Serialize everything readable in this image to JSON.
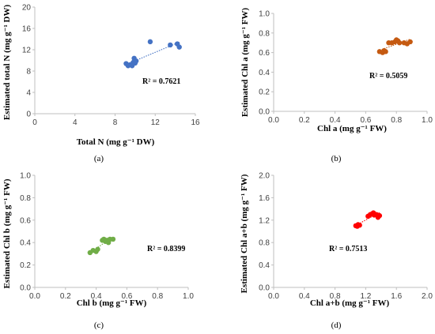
{
  "chart_data": [
    {
      "type": "scatter",
      "panel_label": "(a)",
      "xlabel": "Total N (mg g⁻¹ DW)",
      "ylabel": "Estimated total N (mg g⁻¹ DW)",
      "xlim": [
        0,
        16
      ],
      "ylim": [
        0,
        20
      ],
      "xticks": [
        "0",
        "4",
        "8",
        "12",
        "16"
      ],
      "yticks": [
        "0",
        "4",
        "8",
        "12",
        "16",
        "20"
      ],
      "r2_label": "R² = 0.7621",
      "color": "#4472c4",
      "trendline": true,
      "x": [
        9.1,
        9.3,
        9.5,
        9.7,
        9.8,
        9.9,
        10.0,
        10.1,
        9.9,
        11.5,
        13.5,
        14.2,
        14.4
      ],
      "y": [
        9.4,
        9.0,
        9.2,
        9.0,
        9.6,
        10.4,
        9.5,
        9.9,
        9.8,
        13.5,
        12.9,
        13.1,
        12.5
      ]
    },
    {
      "type": "scatter",
      "panel_label": "(b)",
      "xlabel": "Chl a (mg g⁻¹ FW)",
      "ylabel": "Estimated Chl a (mg g⁻¹ FW)",
      "xlim": [
        0,
        1
      ],
      "ylim": [
        0,
        1
      ],
      "xticks": [
        "0.0",
        "0.2",
        "0.4",
        "0.6",
        "0.8",
        "1.0"
      ],
      "yticks": [
        "0.0",
        "0.2",
        "0.4",
        "0.6",
        "0.8",
        "1.0"
      ],
      "r2_label": "R² = 0.5059",
      "color": "#c55a11",
      "trendline": true,
      "x": [
        0.69,
        0.71,
        0.72,
        0.73,
        0.75,
        0.77,
        0.79,
        0.8,
        0.81,
        0.82,
        0.85,
        0.87,
        0.89
      ],
      "y": [
        0.61,
        0.6,
        0.62,
        0.61,
        0.7,
        0.7,
        0.71,
        0.73,
        0.72,
        0.7,
        0.7,
        0.69,
        0.71
      ]
    },
    {
      "type": "scatter",
      "panel_label": "(c)",
      "xlabel": "Chl b (mg g⁻¹ FW)",
      "ylabel": "Estimated Chl b (mg g⁻¹ FW)",
      "xlim": [
        0,
        1
      ],
      "ylim": [
        0,
        1
      ],
      "xticks": [
        "0.0",
        "0.2",
        "0.4",
        "0.6",
        "0.8",
        "1.0"
      ],
      "yticks": [
        "0.0",
        "0.2",
        "0.4",
        "0.6",
        "0.8",
        "1.0"
      ],
      "r2_label": "R² = 0.8399",
      "color": "#70ad47",
      "trendline": true,
      "x": [
        0.36,
        0.38,
        0.4,
        0.41,
        0.44,
        0.45,
        0.46,
        0.47,
        0.48,
        0.49,
        0.51
      ],
      "y": [
        0.31,
        0.33,
        0.32,
        0.34,
        0.42,
        0.43,
        0.41,
        0.42,
        0.4,
        0.43,
        0.43
      ]
    },
    {
      "type": "scatter",
      "panel_label": "(d)",
      "xlabel": "Chl a+b (mg g⁻¹ FW)",
      "ylabel": "Estimated Chl a+b (mg g⁻¹ FW)",
      "xlim": [
        0,
        2
      ],
      "ylim": [
        0,
        2
      ],
      "xticks": [
        "0.0",
        "0.4",
        "0.8",
        "1.2",
        "1.6",
        "2.0"
      ],
      "yticks": [
        "0.0",
        "0.4",
        "0.8",
        "1.2",
        "1.6",
        "2.0"
      ],
      "r2_label": "R² = 0.7513",
      "color": "#ff0000",
      "trendline": true,
      "x": [
        1.07,
        1.09,
        1.1,
        1.12,
        1.23,
        1.26,
        1.28,
        1.3,
        1.31,
        1.34,
        1.36,
        1.38
      ],
      "y": [
        1.1,
        1.09,
        1.12,
        1.11,
        1.27,
        1.3,
        1.31,
        1.33,
        1.29,
        1.3,
        1.25,
        1.28
      ]
    }
  ]
}
